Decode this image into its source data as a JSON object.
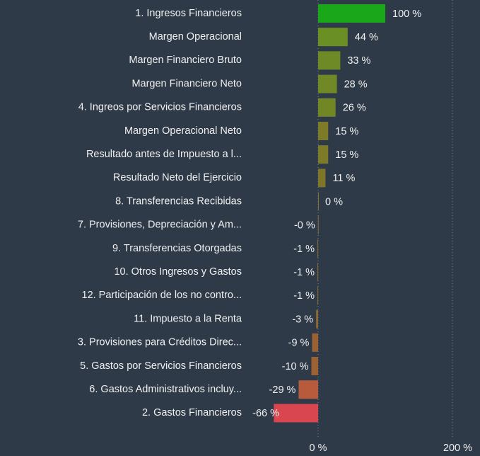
{
  "chart_data": {
    "type": "hbar",
    "categories": [
      "1. Ingresos Financieros",
      "Margen Operacional",
      "Margen Financiero Bruto",
      "Margen Financiero Neto",
      "4. Ingreos por Servicios Financieros",
      "Margen Operacional Neto",
      "Resultado antes de Impuesto a l...",
      "Resultado Neto del Ejercicio",
      "8. Transferencias Recibidas",
      "7. Provisiones, Depreciación y Am...",
      "9. Transferencias Otorgadas",
      "10. Otros Ingresos y Gastos",
      "12. Participación de los no contro...",
      "11. Impuesto a la Renta",
      "3. Provisiones para Créditos Direc...",
      "5. Gastos por Servicios Financieros",
      "6. Gastos Administrativos incluy...",
      "2. Gastos Financieros"
    ],
    "values": [
      100,
      44,
      33,
      28,
      26,
      15,
      15,
      11,
      0,
      -0.2,
      -1,
      -1,
      -1,
      -3,
      -9,
      -10,
      -29,
      -66
    ],
    "value_labels": [
      "100 %",
      "44 %",
      "33 %",
      "28 %",
      "26 %",
      "15 %",
      "15 %",
      "11 %",
      "0 %",
      "-0 %",
      "-1 %",
      "-1 %",
      "-1 %",
      "-3 %",
      "-9 %",
      "-10 %",
      "-29 %",
      "-66 %"
    ],
    "colors": [
      "#1aa81a",
      "#6a8f25",
      "#6e8a26",
      "#708826",
      "#718726",
      "#7d7a28",
      "#7d7a28",
      "#807628",
      "#866f2a",
      "#886d2b",
      "#8a6b2c",
      "#8a6b2c",
      "#8a6b2c",
      "#8e682d",
      "#9a6232",
      "#9c6133",
      "#b85a3c",
      "#d9464f"
    ],
    "xlim": [
      -100,
      220
    ],
    "xticks": [
      {
        "value": 0,
        "label": "0 %"
      },
      {
        "value": 200,
        "label": "200 %"
      }
    ],
    "grid": true
  }
}
